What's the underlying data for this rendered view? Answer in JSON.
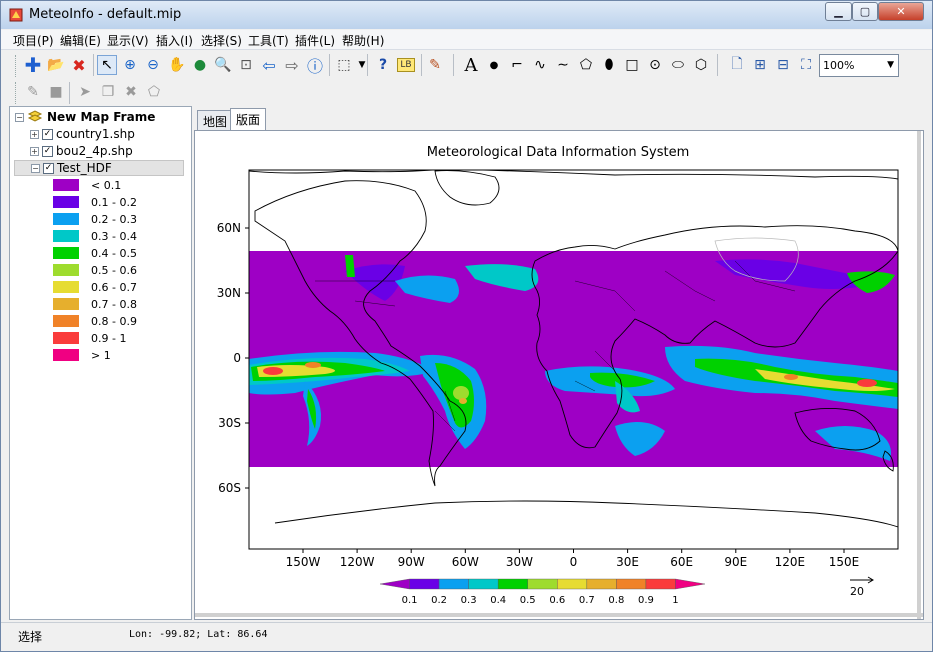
{
  "window": {
    "title": "MeteoInfo - default.mip"
  },
  "menu": [
    "项目(P)",
    "编辑(E)",
    "显示(V)",
    "插入(I)",
    "选择(S)",
    "工具(T)",
    "插件(L)",
    "帮助(H)"
  ],
  "toolbar": {
    "zoom_value": "100%"
  },
  "layers": {
    "frame_name": "New Map Frame",
    "items": [
      {
        "name": "country1.shp",
        "checked": true
      },
      {
        "name": "bou2_4p.shp",
        "checked": true
      },
      {
        "name": "Test_HDF",
        "checked": true
      }
    ],
    "legend": [
      {
        "label": "< 0.1",
        "color": "#9e00c5"
      },
      {
        "label": "0.1 - 0.2",
        "color": "#6a00e6"
      },
      {
        "label": "0.2 - 0.3",
        "color": "#0ba0f0"
      },
      {
        "label": "0.3 - 0.4",
        "color": "#00c8c8"
      },
      {
        "label": "0.4 - 0.5",
        "color": "#00d100"
      },
      {
        "label": "0.5 - 0.6",
        "color": "#9edc2e"
      },
      {
        "label": "0.6 - 0.7",
        "color": "#e6dc32"
      },
      {
        "label": "0.7 - 0.8",
        "color": "#e6af2d"
      },
      {
        "label": "0.8 - 0.9",
        "color": "#f08228"
      },
      {
        "label": "0.9 - 1",
        "color": "#fa3c3c"
      },
      {
        "label": "> 1",
        "color": "#f00082"
      }
    ]
  },
  "tabs": [
    "地图",
    "版面"
  ],
  "map": {
    "title": "Meteorological Data Information System",
    "lat_labels": [
      "60N",
      "30N",
      "0",
      "30S",
      "60S"
    ],
    "lon_labels": [
      "150W",
      "120W",
      "90W",
      "60W",
      "30W",
      "0",
      "30E",
      "60E",
      "90E",
      "120E",
      "150E"
    ],
    "colorbar_labels": [
      "0.1",
      "0.2",
      "0.3",
      "0.4",
      "0.5",
      "0.6",
      "0.7",
      "0.8",
      "0.9",
      "1"
    ],
    "vector_scale": "20"
  },
  "status": {
    "label": "选择",
    "coords": "Lon: -99.82; Lat: 86.64"
  }
}
